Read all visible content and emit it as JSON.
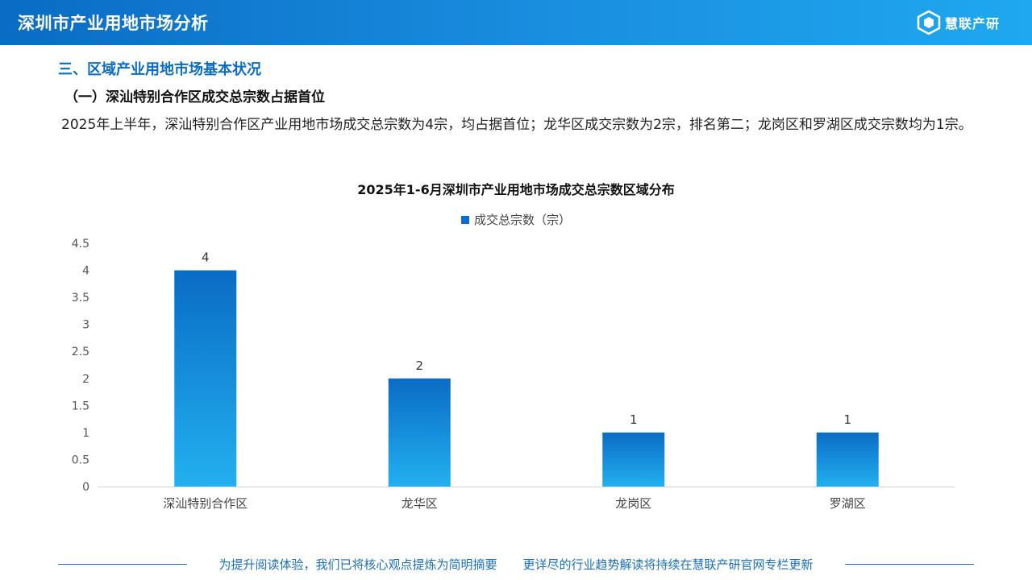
{
  "header": {
    "title": "深圳市产业用地市场分析",
    "logo_text": "慧联产研"
  },
  "section": {
    "title": "三、区域产业用地市场基本状况",
    "subtitle": "（一）深汕特别合作区成交总宗数占据首位",
    "paragraph": "2025年上半年，深汕特别合作区产业用地市场成交总宗数为4宗，均占据首位；龙华区成交宗数为2宗，排名第二；龙岗区和罗湖区成交宗数均为1宗。"
  },
  "chart_data": {
    "type": "bar",
    "title": "2025年1-6月深圳市产业用地市场成交总宗数区域分布",
    "categories": [
      "深汕特别合作区",
      "龙华区",
      "龙岗区",
      "罗湖区"
    ],
    "series": [
      {
        "name": "成交总宗数（宗）",
        "values": [
          4,
          2,
          1,
          1
        ]
      }
    ],
    "ylim": [
      0,
      4.5
    ],
    "yticks": [
      "0",
      "0.5",
      "1",
      "1.5",
      "2",
      "2.5",
      "3",
      "3.5",
      "4",
      "4.5"
    ],
    "data_labels": true,
    "legend_position": "top-center",
    "grid": false,
    "colors": {
      "bar_top": "#0a6cc4",
      "bar_bottom": "#22b0f0"
    }
  },
  "footer": {
    "left": "为提升阅读体验，我们已将核心观点提炼为简明摘要",
    "right": "更详尽的行业趋势解读将持续在慧联产研官网专栏更新"
  }
}
